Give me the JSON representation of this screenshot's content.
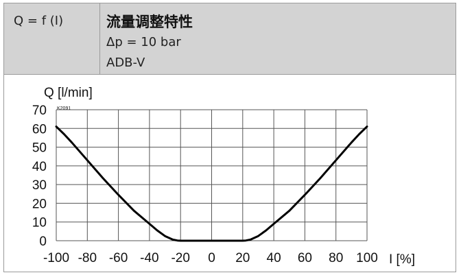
{
  "header": {
    "formula": "Q = f (I)",
    "title": "流量调整特性",
    "delta_p": "Δp = 10 bar",
    "model": "ADB-V"
  },
  "chart_data": {
    "type": "line",
    "ylabel": "Q [l/min]",
    "xlabel": "I [%]",
    "code": "K2091",
    "xlim": [
      -100,
      100
    ],
    "ylim": [
      0,
      70
    ],
    "xticks": [
      -100,
      -80,
      -60,
      -40,
      -20,
      0,
      20,
      40,
      60,
      80,
      100
    ],
    "yticks": [
      0,
      10,
      20,
      30,
      40,
      50,
      60,
      70
    ],
    "grid": true,
    "series": [
      {
        "color": "#000000",
        "x": [
          -100,
          -95,
          -90,
          -80,
          -70,
          -60,
          -50,
          -40,
          -35,
          -30,
          -25,
          -22,
          -20,
          0,
          20,
          22,
          25,
          30,
          35,
          40,
          50,
          60,
          70,
          80,
          90,
          95,
          100
        ],
        "y": [
          61,
          57,
          52.5,
          43,
          33.5,
          24.5,
          16,
          9,
          5.5,
          2.5,
          0.6,
          0.1,
          0,
          0,
          0,
          0.1,
          0.6,
          2.5,
          5.5,
          9,
          16,
          24.5,
          33.5,
          43,
          52.5,
          57,
          61
        ]
      }
    ]
  }
}
